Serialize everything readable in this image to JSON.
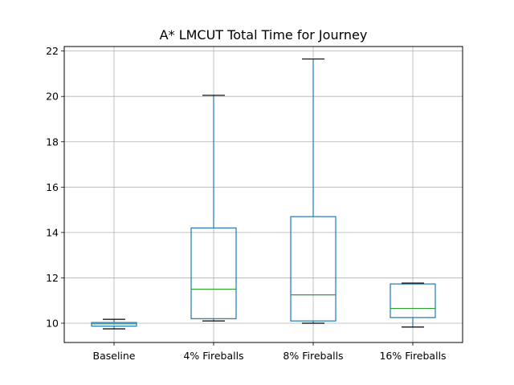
{
  "chart_data": {
    "type": "box",
    "title": "A* LMCUT Total Time for Journey",
    "xlabel": "",
    "ylabel": "",
    "ylim": [
      9.15,
      22.2
    ],
    "yticks": [
      10,
      12,
      14,
      16,
      18,
      20,
      22
    ],
    "grid": true,
    "colors": {
      "box": "#1f77b4",
      "median": "#2ca02c",
      "cap": "#000000",
      "grid": "#b0b0b0"
    },
    "boxes": [
      {
        "label": "Baseline",
        "whisker_low": 9.75,
        "q1": 9.87,
        "median": 9.97,
        "q3": 10.03,
        "whisker_high": 10.17
      },
      {
        "label": "4% Fireballs",
        "whisker_low": 10.1,
        "q1": 10.2,
        "median": 11.5,
        "q3": 14.2,
        "whisker_high": 20.05
      },
      {
        "label": "8% Fireballs",
        "whisker_low": 10.0,
        "q1": 10.1,
        "median": 11.25,
        "q3": 14.7,
        "whisker_high": 21.65
      },
      {
        "label": "16% Fireballs",
        "whisker_low": 9.83,
        "q1": 10.25,
        "median": 10.65,
        "q3": 11.73,
        "whisker_high": 11.77
      }
    ]
  }
}
